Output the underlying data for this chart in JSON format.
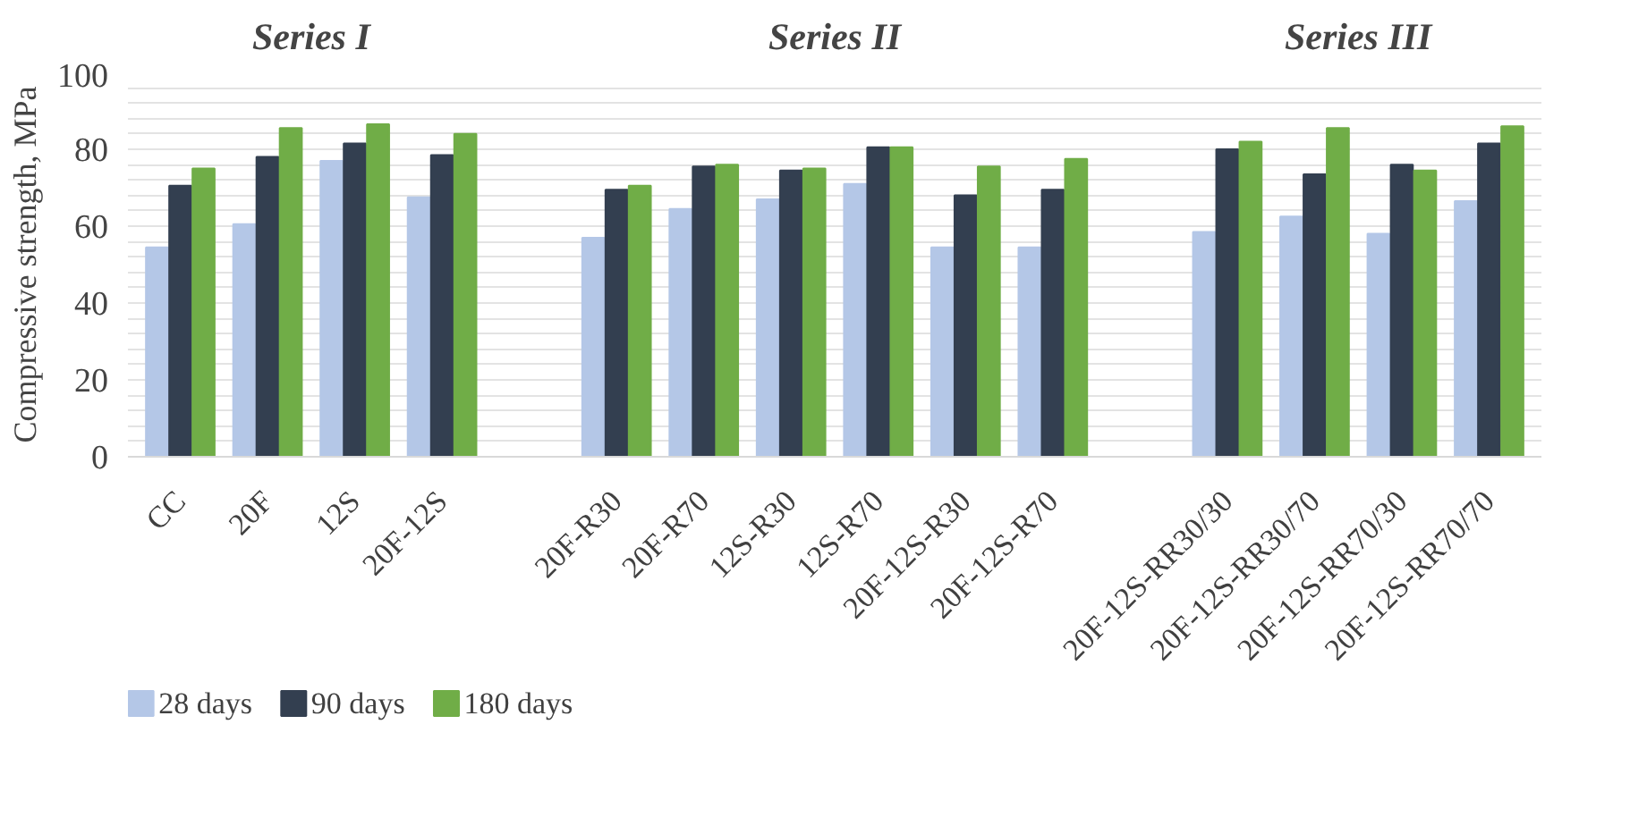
{
  "chart_data": {
    "type": "bar",
    "ylabel": "Compressive strength, MPa",
    "annotations": [
      "Series I",
      "Series II",
      "Series III"
    ],
    "categories": [
      "CC",
      "20F",
      "12S",
      "20F-12S",
      null,
      "20F-R30",
      "20F-R70",
      "12S-R30",
      "12S-R70",
      "20F-12S-R30",
      "20F-12S-R70",
      null,
      "20F-12S-RR30/30",
      "20F-12S-RR30/70",
      "20F-12S-RR70/30",
      "20F-12S-RR70/70"
    ],
    "series": [
      {
        "name": "28 days",
        "color": "#b4c7e7",
        "values": [
          54.5,
          60.5,
          77,
          67.5,
          null,
          57,
          64.5,
          67,
          71,
          54.5,
          54.5,
          null,
          58.5,
          62.5,
          58,
          66.5
        ]
      },
      {
        "name": "90 days",
        "color": "#333f50",
        "values": [
          70.5,
          78,
          81.5,
          78.5,
          null,
          69.5,
          75.5,
          74.5,
          80.5,
          68,
          69.5,
          null,
          80,
          73.5,
          76,
          81.5
        ]
      },
      {
        "name": "180 days",
        "color": "#70ad47",
        "values": [
          75,
          85.5,
          86.5,
          84,
          null,
          70.5,
          76,
          75,
          80.5,
          75.5,
          77.5,
          null,
          82,
          85.5,
          74.5,
          86
        ]
      }
    ],
    "ylim": [
      0,
      100
    ],
    "yticks": [
      0,
      {
        "value": 4,
        "label": null
      },
      {
        "value": 8,
        "label": null
      },
      {
        "value": 12,
        "label": null
      },
      {
        "value": 16,
        "label": null
      },
      20,
      {
        "value": 24,
        "label": null
      },
      {
        "value": 28,
        "label": null
      },
      {
        "value": 32,
        "label": null
      },
      {
        "value": 36,
        "label": null
      },
      40,
      {
        "value": 44,
        "label": null
      },
      {
        "value": 48,
        "label": null
      },
      {
        "value": 52,
        "label": null
      },
      {
        "value": 56,
        "label": null
      },
      60,
      {
        "value": 64,
        "label": null
      },
      {
        "value": 68,
        "label": null
      },
      {
        "value": 72,
        "label": null
      },
      {
        "value": 76,
        "label": null
      },
      80,
      {
        "value": 84,
        "label": null
      },
      {
        "value": 88,
        "label": null
      },
      {
        "value": 92,
        "label": null
      },
      {
        "value": 96,
        "label": null
      },
      100
    ],
    "grid": "y",
    "legend": "bottom left"
  }
}
